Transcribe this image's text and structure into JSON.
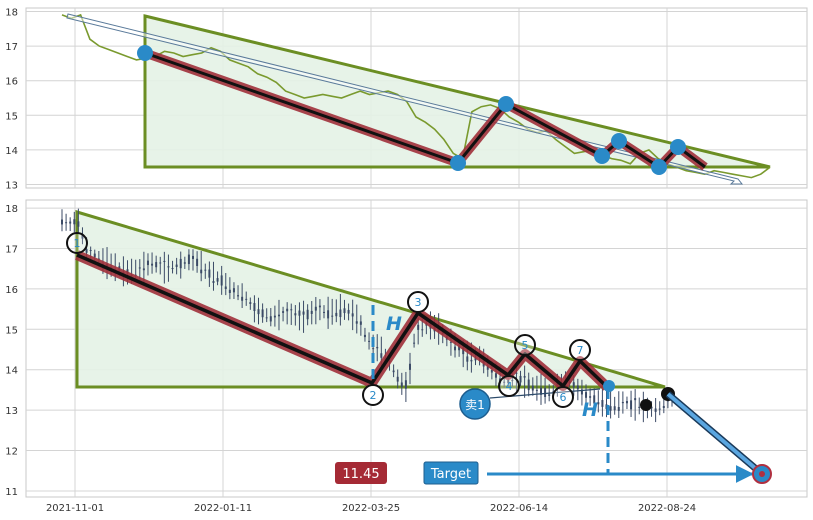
{
  "chart_data": [
    {
      "type": "line",
      "panel": "top",
      "ylim": [
        12.9,
        18.1
      ],
      "yticks": [
        13,
        14,
        15,
        16,
        17,
        18
      ],
      "ytick_labels": [
        "13",
        "14",
        "15",
        "16",
        "17",
        "18"
      ],
      "grid": true,
      "series": [
        {
          "values": [
            17.9,
            17.8,
            17.9,
            17.2,
            17.0,
            16.9,
            16.8,
            16.7,
            16.6,
            16.65,
            16.7,
            16.85,
            16.8,
            16.7,
            16.75,
            16.8,
            16.95,
            16.85,
            16.6,
            16.5,
            16.4,
            16.2,
            16.1,
            15.95,
            15.7,
            15.6,
            15.5,
            15.55,
            15.6,
            15.55,
            15.5,
            15.6,
            15.7,
            15.6,
            15.65,
            15.7,
            15.6,
            15.4,
            14.95,
            14.8,
            14.6,
            14.3,
            13.9,
            13.75,
            15.1,
            15.25,
            15.3,
            15.2,
            14.95,
            14.8,
            14.6,
            14.5,
            14.55,
            14.3,
            14.1,
            13.9,
            13.95,
            14.0,
            13.85,
            13.75,
            13.7,
            13.6,
            13.9,
            14.0,
            13.75,
            13.6,
            13.5,
            13.4,
            13.35,
            13.3,
            13.4,
            13.35,
            13.3,
            13.25,
            13.2,
            13.3,
            13.5
          ]
        }
      ],
      "pattern_points": [
        {
          "x": 0.13,
          "y": 16.8
        },
        {
          "x": 0.56,
          "y": 13.7
        },
        {
          "x": 0.64,
          "y": 15.35
        },
        {
          "x": 0.76,
          "y": 13.9
        },
        {
          "x": 0.79,
          "y": 14.3
        },
        {
          "x": 0.87,
          "y": 13.55
        },
        {
          "x": 0.9,
          "y": 14.2
        }
      ]
    },
    {
      "type": "candlestick",
      "panel": "bottom",
      "ylim": [
        10.85,
        18.2
      ],
      "yticks": [
        11,
        12,
        13,
        14,
        15,
        16,
        17,
        18
      ],
      "ytick_labels": [
        "11",
        "12",
        "13",
        "14",
        "15",
        "16",
        "17",
        "18"
      ],
      "xtick_labels": [
        "2021-11-01",
        "2022-01-11",
        "2022-03-25",
        "2022-06-14",
        "2022-08-24"
      ],
      "grid": true,
      "pattern_labels": [
        "1",
        "2",
        "3",
        "4",
        "5",
        "6",
        "7"
      ],
      "annotations": {
        "height_label": "H",
        "sell_label": "卖1",
        "target_label": "Target",
        "price_label": "11.45"
      }
    }
  ],
  "colors": {
    "triangle_border": "#6b8e23",
    "triangle_fill": "#e4f2e6",
    "zigzag": "#a0303a",
    "accent_blue": "#2a8ac8",
    "price_line": "#7a9a2e",
    "candle": "#3b4a66",
    "price_badge": "#a52a35"
  }
}
